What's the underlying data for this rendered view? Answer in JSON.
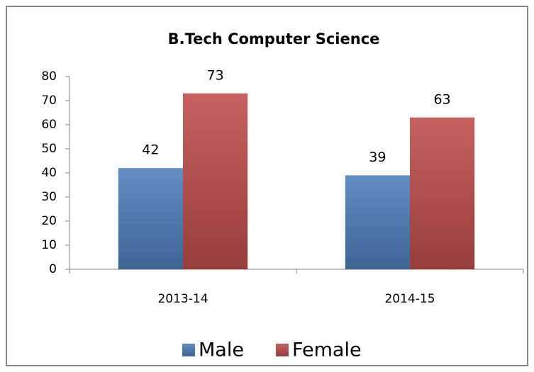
{
  "chart_data": {
    "type": "bar",
    "title": "B.Tech Computer Science",
    "categories": [
      "2013-14",
      "2014-15"
    ],
    "series": [
      {
        "name": "Male",
        "color": "#4f81bd",
        "values": [
          42,
          39
        ]
      },
      {
        "name": "Female",
        "color": "#c0504d",
        "values": [
          73,
          63
        ]
      }
    ],
    "ylim": [
      0,
      80
    ],
    "yticks": [
      0,
      10,
      20,
      30,
      40,
      50,
      60,
      70,
      80
    ],
    "grid": false,
    "legend": "bottom",
    "data_labels": true
  }
}
